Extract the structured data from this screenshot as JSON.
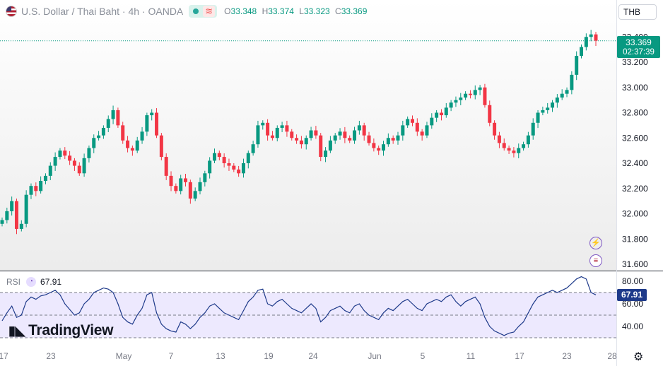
{
  "header": {
    "symbol_title": "U.S. Dollar / Thai Baht · 4h · OANDA",
    "open_label": "O",
    "open": "33.348",
    "high_label": "H",
    "high": "33.374",
    "low_label": "L",
    "low": "33.323",
    "close_label": "C",
    "close": "33.369"
  },
  "currency_selector": {
    "value": "THB"
  },
  "last_price": {
    "price": "33.369",
    "countdown": "02:37:39"
  },
  "rsi": {
    "label": "RSI",
    "value": "67.91",
    "icon": "rsi-indicator-icon"
  },
  "branding": {
    "logo_text": "TradingView",
    "logo_icon": "tradingview-logo-icon"
  },
  "icons": {
    "settings": "gear-icon",
    "event1": "lightning-event-icon",
    "event2": "us-flag-event-icon"
  },
  "colors": {
    "up": "#089981",
    "down": "#f23645",
    "rsi_line": "#1e3a8a",
    "rsi_band": "#ede9fe"
  },
  "chart_data": [
    {
      "type": "candlestick",
      "title": "U.S. Dollar / Thai Baht · 4h · OANDA",
      "y_ticks": [
        "31.600",
        "31.800",
        "32.000",
        "32.200",
        "32.400",
        "32.600",
        "32.800",
        "33.000",
        "33.200",
        "33.400"
      ],
      "ylim": [
        31.56,
        33.6
      ],
      "x_ticks": [
        "17",
        "23",
        "May",
        "7",
        "13",
        "19",
        "24",
        "Jun",
        "5",
        "11",
        "17",
        "23",
        "28"
      ],
      "close_series": [
        31.95,
        32.02,
        32.1,
        31.88,
        31.92,
        32.15,
        32.22,
        32.18,
        32.26,
        32.3,
        32.38,
        32.45,
        32.5,
        32.46,
        32.42,
        32.38,
        32.32,
        32.44,
        32.52,
        32.6,
        32.62,
        32.68,
        32.75,
        32.82,
        32.7,
        32.58,
        32.52,
        32.5,
        32.58,
        32.65,
        32.78,
        32.8,
        32.62,
        32.45,
        32.3,
        32.22,
        32.18,
        32.28,
        32.25,
        32.12,
        32.18,
        32.25,
        32.32,
        32.42,
        32.48,
        32.45,
        32.4,
        32.38,
        32.35,
        32.32,
        32.4,
        32.48,
        32.55,
        32.7,
        32.72,
        32.62,
        32.6,
        32.68,
        32.7,
        32.65,
        32.6,
        32.58,
        32.55,
        32.6,
        32.66,
        32.62,
        32.45,
        32.5,
        32.58,
        32.62,
        32.65,
        32.6,
        32.58,
        32.66,
        32.7,
        32.62,
        32.56,
        32.52,
        32.5,
        32.55,
        32.6,
        32.58,
        32.62,
        32.7,
        32.75,
        32.72,
        32.65,
        32.62,
        32.7,
        32.76,
        32.8,
        32.78,
        32.84,
        32.88,
        32.9,
        32.92,
        32.95,
        32.94,
        32.98,
        33.0,
        32.86,
        32.72,
        32.62,
        32.56,
        32.52,
        32.5,
        32.48,
        32.52,
        32.55,
        32.62,
        32.72,
        32.8,
        32.82,
        32.84,
        32.88,
        32.92,
        32.95,
        32.98,
        33.1,
        33.25,
        33.32,
        33.4,
        33.42,
        33.37
      ],
      "candles_note": "4h OHLC candles, green up / red down",
      "last": 33.369
    },
    {
      "type": "line",
      "title": "RSI",
      "y_ticks": [
        "40.00",
        "60.00",
        "80.00"
      ],
      "ylim": [
        30,
        85
      ],
      "bands": [
        30,
        50,
        70
      ],
      "series": [
        {
          "name": "RSI",
          "values": [
            45,
            52,
            58,
            48,
            50,
            62,
            66,
            64,
            67,
            68,
            70,
            72,
            68,
            60,
            55,
            50,
            52,
            60,
            64,
            70,
            72,
            74,
            73,
            70,
            60,
            48,
            44,
            42,
            50,
            56,
            68,
            70,
            52,
            42,
            38,
            36,
            35,
            44,
            42,
            38,
            42,
            48,
            52,
            58,
            60,
            56,
            52,
            50,
            48,
            46,
            54,
            62,
            66,
            72,
            73,
            60,
            58,
            62,
            64,
            60,
            56,
            54,
            52,
            56,
            60,
            56,
            44,
            48,
            54,
            56,
            58,
            54,
            52,
            58,
            60,
            54,
            50,
            48,
            46,
            52,
            56,
            54,
            58,
            62,
            64,
            60,
            56,
            54,
            60,
            62,
            64,
            62,
            66,
            68,
            62,
            58,
            62,
            64,
            66,
            60,
            48,
            40,
            36,
            34,
            32,
            34,
            35,
            40,
            44,
            52,
            60,
            66,
            68,
            70,
            72,
            70,
            72,
            74,
            78,
            82,
            84,
            82,
            70,
            67.91
          ]
        }
      ]
    }
  ]
}
